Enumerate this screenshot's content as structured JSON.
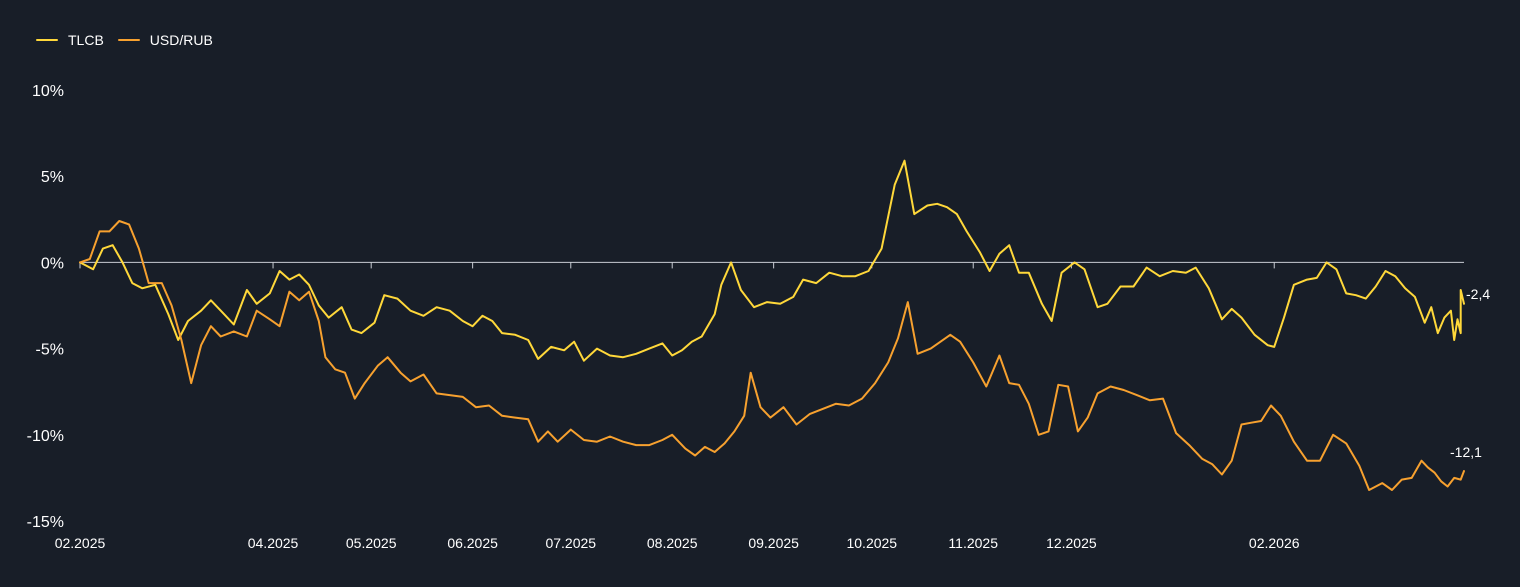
{
  "chart_data": {
    "type": "line",
    "x_ticks": [
      "02.2025",
      "04.2025",
      "05.2025",
      "06.2025",
      "07.2025",
      "08.2025",
      "09.2025",
      "10.2025",
      "11.2025",
      "12.2025",
      "02.2026"
    ],
    "y_ticks": [
      "10%",
      "5%",
      "0%",
      "-5%",
      "-10%",
      "-15%"
    ],
    "ylim": [
      -15,
      10
    ],
    "x_range": [
      "2025-02-01",
      "2026-03-31"
    ],
    "zero_line": true,
    "grid": false,
    "legend": "top-left",
    "series": [
      {
        "name": "TLCB",
        "color": "#ffd83a",
        "end_label": "-2,4",
        "points": [
          [
            "2025-02-01",
            0.0
          ],
          [
            "2025-02-05",
            -0.4
          ],
          [
            "2025-02-08",
            0.8
          ],
          [
            "2025-02-11",
            1.0
          ],
          [
            "2025-02-14",
            0.0
          ],
          [
            "2025-02-17",
            -1.2
          ],
          [
            "2025-02-20",
            -1.5
          ],
          [
            "2025-02-24",
            -1.3
          ],
          [
            "2025-02-28",
            -3.0
          ],
          [
            "2025-03-03",
            -4.5
          ],
          [
            "2025-03-06",
            -3.4
          ],
          [
            "2025-03-10",
            -2.8
          ],
          [
            "2025-03-13",
            -2.2
          ],
          [
            "2025-03-17",
            -3.0
          ],
          [
            "2025-03-20",
            -3.6
          ],
          [
            "2025-03-24",
            -1.6
          ],
          [
            "2025-03-27",
            -2.4
          ],
          [
            "2025-03-31",
            -1.8
          ],
          [
            "2025-04-03",
            -0.5
          ],
          [
            "2025-04-06",
            -1.0
          ],
          [
            "2025-04-09",
            -0.7
          ],
          [
            "2025-04-12",
            -1.3
          ],
          [
            "2025-04-15",
            -2.5
          ],
          [
            "2025-04-18",
            -3.2
          ],
          [
            "2025-04-22",
            -2.6
          ],
          [
            "2025-04-25",
            -3.9
          ],
          [
            "2025-04-28",
            -4.1
          ],
          [
            "2025-05-02",
            -3.5
          ],
          [
            "2025-05-05",
            -1.9
          ],
          [
            "2025-05-09",
            -2.1
          ],
          [
            "2025-05-13",
            -2.8
          ],
          [
            "2025-05-17",
            -3.1
          ],
          [
            "2025-05-21",
            -2.6
          ],
          [
            "2025-05-25",
            -2.8
          ],
          [
            "2025-05-29",
            -3.4
          ],
          [
            "2025-06-01",
            -3.7
          ],
          [
            "2025-06-04",
            -3.1
          ],
          [
            "2025-06-07",
            -3.4
          ],
          [
            "2025-06-10",
            -4.1
          ],
          [
            "2025-06-14",
            -4.2
          ],
          [
            "2025-06-18",
            -4.5
          ],
          [
            "2025-06-21",
            -5.6
          ],
          [
            "2025-06-25",
            -4.9
          ],
          [
            "2025-06-29",
            -5.1
          ],
          [
            "2025-07-02",
            -4.6
          ],
          [
            "2025-07-05",
            -5.7
          ],
          [
            "2025-07-09",
            -5.0
          ],
          [
            "2025-07-13",
            -5.4
          ],
          [
            "2025-07-17",
            -5.5
          ],
          [
            "2025-07-21",
            -5.3
          ],
          [
            "2025-07-25",
            -5.0
          ],
          [
            "2025-07-29",
            -4.7
          ],
          [
            "2025-08-01",
            -5.4
          ],
          [
            "2025-08-04",
            -5.1
          ],
          [
            "2025-08-07",
            -4.6
          ],
          [
            "2025-08-10",
            -4.3
          ],
          [
            "2025-08-14",
            -3.0
          ],
          [
            "2025-08-16",
            -1.3
          ],
          [
            "2025-08-19",
            0.0
          ],
          [
            "2025-08-22",
            -1.6
          ],
          [
            "2025-08-26",
            -2.6
          ],
          [
            "2025-08-30",
            -2.3
          ],
          [
            "2025-09-03",
            -2.4
          ],
          [
            "2025-09-07",
            -2.0
          ],
          [
            "2025-09-10",
            -1.0
          ],
          [
            "2025-09-14",
            -1.2
          ],
          [
            "2025-09-18",
            -0.6
          ],
          [
            "2025-09-22",
            -0.8
          ],
          [
            "2025-09-26",
            -0.8
          ],
          [
            "2025-09-30",
            -0.5
          ],
          [
            "2025-10-04",
            0.8
          ],
          [
            "2025-10-08",
            4.5
          ],
          [
            "2025-10-11",
            5.9
          ],
          [
            "2025-10-14",
            2.8
          ],
          [
            "2025-10-18",
            3.3
          ],
          [
            "2025-10-21",
            3.4
          ],
          [
            "2025-10-24",
            3.2
          ],
          [
            "2025-10-27",
            2.8
          ],
          [
            "2025-10-30",
            1.8
          ],
          [
            "2025-11-03",
            0.6
          ],
          [
            "2025-11-06",
            -0.5
          ],
          [
            "2025-11-09",
            0.5
          ],
          [
            "2025-11-12",
            1.0
          ],
          [
            "2025-11-15",
            -0.6
          ],
          [
            "2025-11-18",
            -0.6
          ],
          [
            "2025-11-22",
            -2.4
          ],
          [
            "2025-11-25",
            -3.4
          ],
          [
            "2025-11-28",
            -0.6
          ],
          [
            "2025-12-02",
            0.0
          ],
          [
            "2025-12-05",
            -0.4
          ],
          [
            "2025-12-09",
            -2.6
          ],
          [
            "2025-12-12",
            -2.4
          ],
          [
            "2025-12-16",
            -1.4
          ],
          [
            "2025-12-20",
            -1.4
          ],
          [
            "2025-12-24",
            -0.3
          ],
          [
            "2025-12-28",
            -0.8
          ],
          [
            "2026-01-01",
            -0.5
          ],
          [
            "2026-01-05",
            -0.6
          ],
          [
            "2026-01-08",
            -0.3
          ],
          [
            "2026-01-12",
            -1.5
          ],
          [
            "2026-01-16",
            -3.3
          ],
          [
            "2026-01-19",
            -2.7
          ],
          [
            "2026-01-22",
            -3.2
          ],
          [
            "2026-01-26",
            -4.2
          ],
          [
            "2026-01-30",
            -4.8
          ],
          [
            "2026-02-01",
            -4.9
          ],
          [
            "2026-02-04",
            -3.2
          ],
          [
            "2026-02-07",
            -1.3
          ],
          [
            "2026-02-11",
            -1.0
          ],
          [
            "2026-02-14",
            -0.9
          ],
          [
            "2026-02-17",
            0.0
          ],
          [
            "2026-02-20",
            -0.4
          ],
          [
            "2026-02-23",
            -1.8
          ],
          [
            "2026-02-26",
            -1.9
          ],
          [
            "2026-03-01",
            -2.1
          ],
          [
            "2026-03-04",
            -1.4
          ],
          [
            "2026-03-07",
            -0.5
          ],
          [
            "2026-03-10",
            -0.8
          ],
          [
            "2026-03-13",
            -1.5
          ],
          [
            "2026-03-16",
            -2.0
          ],
          [
            "2026-03-19",
            -3.5
          ],
          [
            "2026-03-21",
            -2.6
          ],
          [
            "2026-03-23",
            -4.1
          ],
          [
            "2026-03-25",
            -3.2
          ],
          [
            "2026-03-27",
            -2.8
          ],
          [
            "2026-03-28",
            -4.5
          ],
          [
            "2026-03-29",
            -3.3
          ],
          [
            "2026-03-30",
            -4.1
          ],
          [
            "2026-03-30",
            -1.6
          ],
          [
            "2026-03-31",
            -2.4
          ]
        ]
      },
      {
        "name": "USD/RUB",
        "color": "#f7a12f",
        "end_label": "-12,1",
        "points": [
          [
            "2025-02-01",
            0.0
          ],
          [
            "2025-02-04",
            0.2
          ],
          [
            "2025-02-07",
            1.8
          ],
          [
            "2025-02-10",
            1.8
          ],
          [
            "2025-02-13",
            2.4
          ],
          [
            "2025-02-16",
            2.2
          ],
          [
            "2025-02-19",
            0.8
          ],
          [
            "2025-02-22",
            -1.2
          ],
          [
            "2025-02-26",
            -1.2
          ],
          [
            "2025-03-01",
            -2.5
          ],
          [
            "2025-03-04",
            -4.5
          ],
          [
            "2025-03-07",
            -7.0
          ],
          [
            "2025-03-10",
            -4.8
          ],
          [
            "2025-03-13",
            -3.7
          ],
          [
            "2025-03-16",
            -4.3
          ],
          [
            "2025-03-20",
            -4.0
          ],
          [
            "2025-03-24",
            -4.3
          ],
          [
            "2025-03-27",
            -2.8
          ],
          [
            "2025-03-31",
            -3.3
          ],
          [
            "2025-04-03",
            -3.7
          ],
          [
            "2025-04-06",
            -1.7
          ],
          [
            "2025-04-09",
            -2.2
          ],
          [
            "2025-04-12",
            -1.7
          ],
          [
            "2025-04-15",
            -3.4
          ],
          [
            "2025-04-17",
            -5.5
          ],
          [
            "2025-04-20",
            -6.2
          ],
          [
            "2025-04-23",
            -6.4
          ],
          [
            "2025-04-26",
            -7.9
          ],
          [
            "2025-04-29",
            -7.0
          ],
          [
            "2025-05-03",
            -6.0
          ],
          [
            "2025-05-06",
            -5.5
          ],
          [
            "2025-05-10",
            -6.4
          ],
          [
            "2025-05-13",
            -6.9
          ],
          [
            "2025-05-17",
            -6.5
          ],
          [
            "2025-05-21",
            -7.6
          ],
          [
            "2025-05-25",
            -7.7
          ],
          [
            "2025-05-29",
            -7.8
          ],
          [
            "2025-06-02",
            -8.4
          ],
          [
            "2025-06-06",
            -8.3
          ],
          [
            "2025-06-10",
            -8.9
          ],
          [
            "2025-06-14",
            -9.0
          ],
          [
            "2025-06-18",
            -9.1
          ],
          [
            "2025-06-21",
            -10.4
          ],
          [
            "2025-06-24",
            -9.8
          ],
          [
            "2025-06-27",
            -10.4
          ],
          [
            "2025-07-01",
            -9.7
          ],
          [
            "2025-07-05",
            -10.3
          ],
          [
            "2025-07-09",
            -10.4
          ],
          [
            "2025-07-13",
            -10.1
          ],
          [
            "2025-07-17",
            -10.4
          ],
          [
            "2025-07-21",
            -10.6
          ],
          [
            "2025-07-25",
            -10.6
          ],
          [
            "2025-07-29",
            -10.3
          ],
          [
            "2025-08-01",
            -10.0
          ],
          [
            "2025-08-05",
            -10.8
          ],
          [
            "2025-08-08",
            -11.2
          ],
          [
            "2025-08-11",
            -10.7
          ],
          [
            "2025-08-14",
            -11.0
          ],
          [
            "2025-08-17",
            -10.5
          ],
          [
            "2025-08-20",
            -9.8
          ],
          [
            "2025-08-23",
            -8.9
          ],
          [
            "2025-08-25",
            -6.4
          ],
          [
            "2025-08-28",
            -8.4
          ],
          [
            "2025-08-31",
            -9.0
          ],
          [
            "2025-09-04",
            -8.4
          ],
          [
            "2025-09-08",
            -9.4
          ],
          [
            "2025-09-12",
            -8.8
          ],
          [
            "2025-09-16",
            -8.5
          ],
          [
            "2025-09-20",
            -8.2
          ],
          [
            "2025-09-24",
            -8.3
          ],
          [
            "2025-09-28",
            -7.9
          ],
          [
            "2025-10-02",
            -7.0
          ],
          [
            "2025-10-06",
            -5.8
          ],
          [
            "2025-10-09",
            -4.4
          ],
          [
            "2025-10-12",
            -2.3
          ],
          [
            "2025-10-15",
            -5.3
          ],
          [
            "2025-10-19",
            -5.0
          ],
          [
            "2025-10-22",
            -4.6
          ],
          [
            "2025-10-25",
            -4.2
          ],
          [
            "2025-10-28",
            -4.6
          ],
          [
            "2025-11-01",
            -5.8
          ],
          [
            "2025-11-05",
            -7.2
          ],
          [
            "2025-11-09",
            -5.4
          ],
          [
            "2025-11-12",
            -7.0
          ],
          [
            "2025-11-15",
            -7.1
          ],
          [
            "2025-11-18",
            -8.2
          ],
          [
            "2025-11-21",
            -10.0
          ],
          [
            "2025-11-24",
            -9.8
          ],
          [
            "2025-11-27",
            -7.1
          ],
          [
            "2025-11-30",
            -7.2
          ],
          [
            "2025-12-03",
            -9.8
          ],
          [
            "2025-12-06",
            -9.0
          ],
          [
            "2025-12-09",
            -7.6
          ],
          [
            "2025-12-13",
            -7.2
          ],
          [
            "2025-12-17",
            -7.4
          ],
          [
            "2025-12-21",
            -7.7
          ],
          [
            "2025-12-25",
            -8.0
          ],
          [
            "2025-12-29",
            -7.9
          ],
          [
            "2026-01-02",
            -9.9
          ],
          [
            "2026-01-06",
            -10.6
          ],
          [
            "2026-01-10",
            -11.4
          ],
          [
            "2026-01-13",
            -11.7
          ],
          [
            "2026-01-16",
            -12.3
          ],
          [
            "2026-01-19",
            -11.5
          ],
          [
            "2026-01-22",
            -9.4
          ],
          [
            "2026-01-25",
            -9.3
          ],
          [
            "2026-01-28",
            -9.2
          ],
          [
            "2026-01-31",
            -8.3
          ],
          [
            "2026-02-03",
            -8.9
          ],
          [
            "2026-02-07",
            -10.4
          ],
          [
            "2026-02-11",
            -11.5
          ],
          [
            "2026-02-15",
            -11.5
          ],
          [
            "2026-02-19",
            -10.0
          ],
          [
            "2026-02-23",
            -10.5
          ],
          [
            "2026-02-27",
            -11.8
          ],
          [
            "2026-03-02",
            -13.2
          ],
          [
            "2026-03-06",
            -12.8
          ],
          [
            "2026-03-09",
            -13.2
          ],
          [
            "2026-03-12",
            -12.6
          ],
          [
            "2026-03-15",
            -12.5
          ],
          [
            "2026-03-18",
            -11.5
          ],
          [
            "2026-03-20",
            -11.9
          ],
          [
            "2026-03-22",
            -12.2
          ],
          [
            "2026-03-24",
            -12.7
          ],
          [
            "2026-03-26",
            -13.0
          ],
          [
            "2026-03-28",
            -12.5
          ],
          [
            "2026-03-30",
            -12.6
          ],
          [
            "2026-03-31",
            -12.1
          ]
        ]
      }
    ]
  }
}
